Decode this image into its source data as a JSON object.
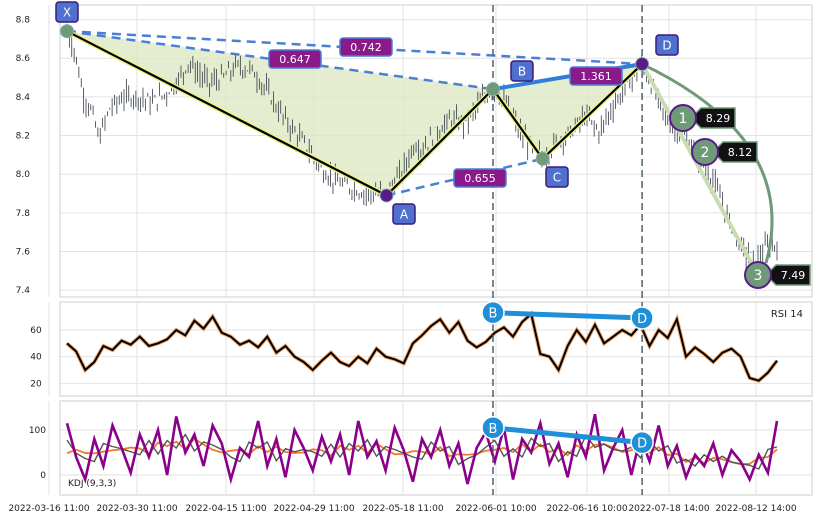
{
  "chart_data": {
    "type": "line",
    "subtype": "harmonic-pattern-with-indicators",
    "x_tick_labels": [
      "2022-03-16 11:00",
      "2022-03-30 11:00",
      "2022-04-15 11:00",
      "2022-04-29 11:00",
      "2022-05-18 11:00",
      "2022-06-01 10:00",
      "2022-06-16 10:00",
      "2022-07-18 14:00",
      "2022-08-12 14:00"
    ],
    "price_panel": {
      "ylim": [
        7.38,
        8.86
      ],
      "yticks": [
        "7.4",
        "7.6",
        "7.8",
        "8.0",
        "8.2",
        "8.4",
        "8.6",
        "8.8"
      ],
      "pattern_points": [
        {
          "label": "X",
          "x": 0.0,
          "y": 8.74
        },
        {
          "label": "A",
          "x": 0.45,
          "y": 7.89
        },
        {
          "label": "B",
          "x": 0.6,
          "y": 8.44
        },
        {
          "label": "C",
          "x": 0.67,
          "y": 8.08
        },
        {
          "label": "D",
          "x": 0.81,
          "y": 8.57
        }
      ],
      "ratios": [
        "0.647",
        "0.742",
        "0.655",
        "1.361"
      ],
      "targets": [
        {
          "label": "1",
          "value": "8.29"
        },
        {
          "label": "2",
          "value": "8.12"
        },
        {
          "label": "3",
          "value": "7.49"
        }
      ],
      "price_path": [
        [
          0.0,
          8.74
        ],
        [
          0.012,
          8.62
        ],
        [
          0.022,
          8.42
        ],
        [
          0.035,
          8.32
        ],
        [
          0.045,
          8.18
        ],
        [
          0.06,
          8.34
        ],
        [
          0.08,
          8.4
        ],
        [
          0.1,
          8.4
        ],
        [
          0.12,
          8.37
        ],
        [
          0.14,
          8.42
        ],
        [
          0.16,
          8.5
        ],
        [
          0.17,
          8.58
        ],
        [
          0.185,
          8.52
        ],
        [
          0.2,
          8.47
        ],
        [
          0.22,
          8.5
        ],
        [
          0.24,
          8.56
        ],
        [
          0.26,
          8.54
        ],
        [
          0.28,
          8.44
        ],
        [
          0.3,
          8.32
        ],
        [
          0.32,
          8.22
        ],
        [
          0.34,
          8.13
        ],
        [
          0.36,
          8.02
        ],
        [
          0.38,
          7.96
        ],
        [
          0.4,
          7.93
        ],
        [
          0.42,
          7.9
        ],
        [
          0.45,
          7.9
        ],
        [
          0.47,
          8.0
        ],
        [
          0.49,
          8.16
        ],
        [
          0.5,
          8.12
        ],
        [
          0.52,
          8.22
        ],
        [
          0.54,
          8.28
        ],
        [
          0.56,
          8.26
        ],
        [
          0.58,
          8.36
        ],
        [
          0.6,
          8.44
        ],
        [
          0.62,
          8.36
        ],
        [
          0.64,
          8.2
        ],
        [
          0.66,
          8.12
        ],
        [
          0.67,
          8.08
        ],
        [
          0.69,
          8.17
        ],
        [
          0.71,
          8.22
        ],
        [
          0.73,
          8.3
        ],
        [
          0.75,
          8.22
        ],
        [
          0.77,
          8.36
        ],
        [
          0.79,
          8.46
        ],
        [
          0.81,
          8.57
        ],
        [
          0.83,
          8.4
        ],
        [
          0.85,
          8.25
        ],
        [
          0.87,
          8.2
        ],
        [
          0.89,
          8.09
        ],
        [
          0.91,
          7.97
        ],
        [
          0.93,
          7.78
        ],
        [
          0.95,
          7.62
        ],
        [
          0.97,
          7.55
        ],
        [
          0.985,
          7.62
        ],
        [
          1.0,
          7.64
        ]
      ]
    },
    "rsi_panel": {
      "label": "RSI 14",
      "ylim": [
        12,
        78
      ],
      "yticks": [
        "20",
        "40",
        "60"
      ],
      "divergence": [
        {
          "label": "B",
          "value": 73
        },
        {
          "label": "D",
          "value": 69
        }
      ],
      "series": [
        50,
        44,
        30,
        36,
        48,
        45,
        52,
        49,
        55,
        48,
        50,
        53,
        60,
        56,
        67,
        61,
        70,
        58,
        55,
        49,
        52,
        47,
        55,
        43,
        48,
        40,
        36,
        30,
        37,
        43,
        36,
        33,
        40,
        35,
        46,
        40,
        38,
        35,
        50,
        56,
        63,
        68,
        58,
        66,
        52,
        47,
        51,
        58,
        62,
        55,
        66,
        72,
        42,
        40,
        30,
        48,
        60,
        51,
        64,
        50,
        55,
        60,
        56,
        64,
        48,
        60,
        54,
        68,
        40,
        47,
        42,
        36,
        43,
        46,
        40,
        24,
        22,
        28,
        37
      ]
    },
    "kdj_panel": {
      "label": "KDJ (9,3,3)",
      "ylim": [
        -40,
        160
      ],
      "yticks": [
        "0",
        "100"
      ],
      "divergence": [
        {
          "label": "B",
          "value": 105
        },
        {
          "label": "D",
          "value": 72
        }
      ],
      "j_series": [
        115,
        40,
        -10,
        80,
        20,
        110,
        60,
        5,
        90,
        40,
        100,
        0,
        130,
        50,
        90,
        20,
        110,
        70,
        -10,
        60,
        40,
        120,
        20,
        80,
        -5,
        100,
        60,
        10,
        85,
        30,
        90,
        0,
        120,
        40,
        75,
        10,
        105,
        55,
        -15,
        80,
        40,
        100,
        20,
        70,
        -20,
        60,
        95,
        30,
        105,
        -10,
        80,
        50,
        115,
        25,
        70,
        -5,
        90,
        40,
        135,
        10,
        60,
        100,
        0,
        85,
        30,
        110,
        20,
        65,
        -5,
        45,
        20,
        70,
        0,
        55,
        30,
        -10,
        45,
        5,
        120
      ],
      "j_color": "#8b008b",
      "k_color": "#555555",
      "d_color": "#f07a2a"
    },
    "colors": {
      "pattern_line": "#000000",
      "pattern_line_glow": "#e8f28a",
      "dashed": "#4a7fd4",
      "fill": "#dfe9c4",
      "point": "#6e9a78",
      "label_box": "#5070d0",
      "ratio_box": "#8a1a8a",
      "divergence": "#1f8fd8",
      "rsi_line": "#000000",
      "rsi_glow": "#f0a870",
      "target_line": "#c9ddb0",
      "arc": "#6e9a78"
    }
  }
}
